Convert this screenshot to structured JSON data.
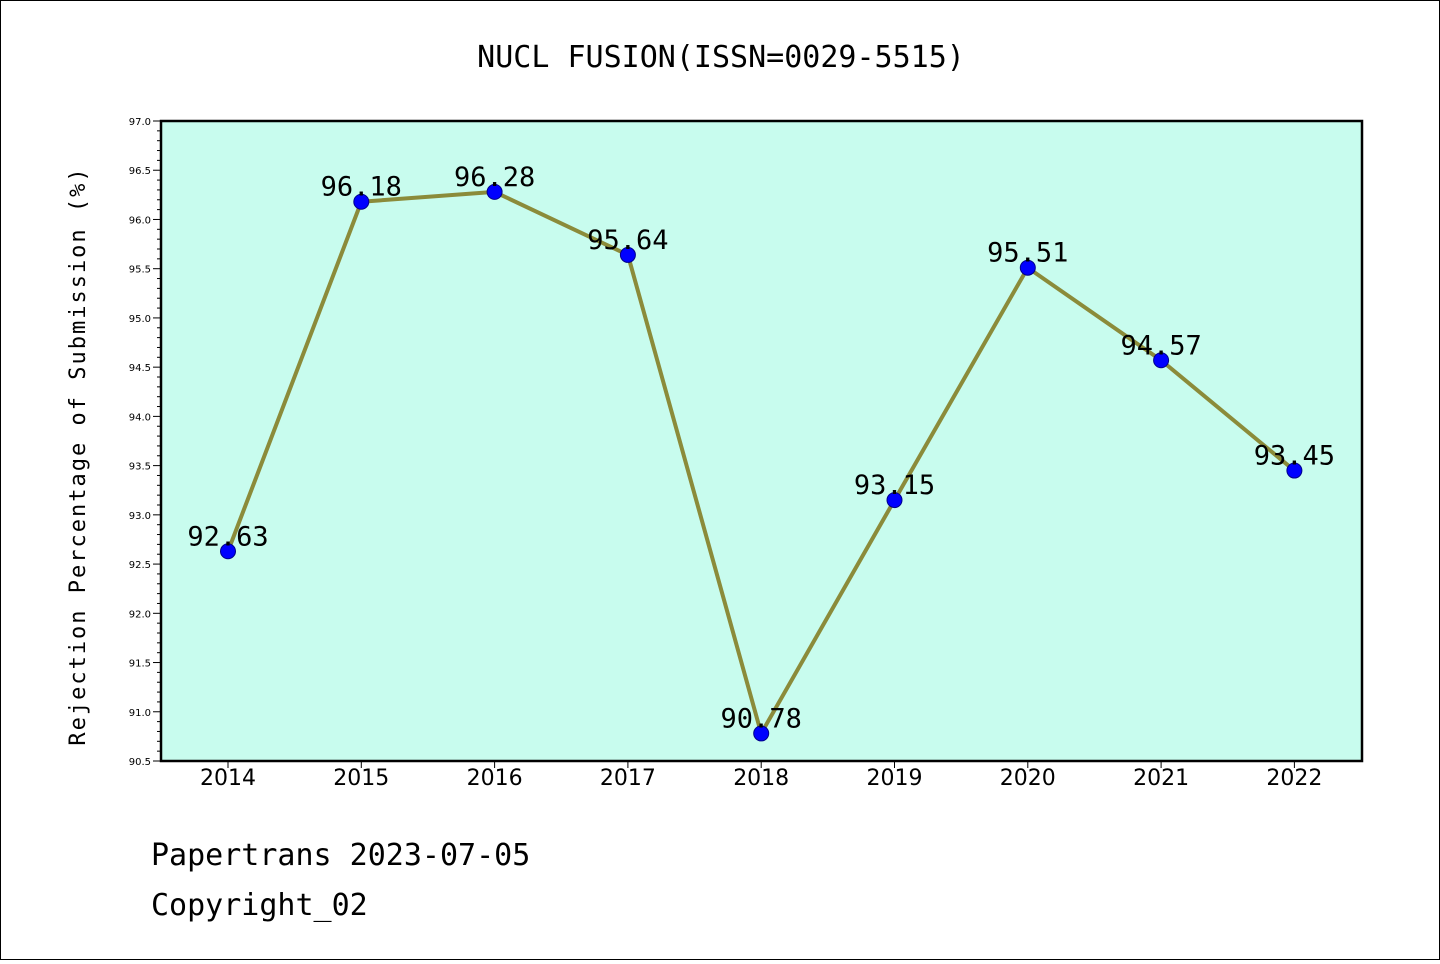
{
  "chart_data": {
    "type": "line",
    "title": "NUCL FUSION(ISSN=0029-5515)",
    "xlabel": "",
    "ylabel": "Rejection Percentage of Submission (%)",
    "categories": [
      "2014",
      "2015",
      "2016",
      "2017",
      "2018",
      "2019",
      "2020",
      "2021",
      "2022"
    ],
    "series": [
      {
        "values": [
          92.63,
          96.18,
          96.28,
          95.64,
          90.78,
          93.15,
          95.51,
          94.57,
          93.45
        ]
      }
    ],
    "data_labels": [
      "92.63",
      "96.18",
      "96.28",
      "95.64",
      "90.78",
      "93.15",
      "95.51",
      "94.57",
      "93.45"
    ],
    "ylim": [
      90.5,
      97.0
    ],
    "yticks": [
      "90.5",
      "91.0",
      "91.5",
      "92.0",
      "92.5",
      "93.0",
      "93.5",
      "94.0",
      "94.5",
      "95.0",
      "95.5",
      "96.0",
      "96.5",
      "97.0"
    ],
    "grid": false,
    "legend": "none",
    "colors": {
      "plot_background": "#c8fcee",
      "line": "#8b8b3a",
      "marker": "#0000ff"
    }
  },
  "footer": {
    "line1": "Papertrans 2023-07-05",
    "line2": "Copyright_02"
  }
}
